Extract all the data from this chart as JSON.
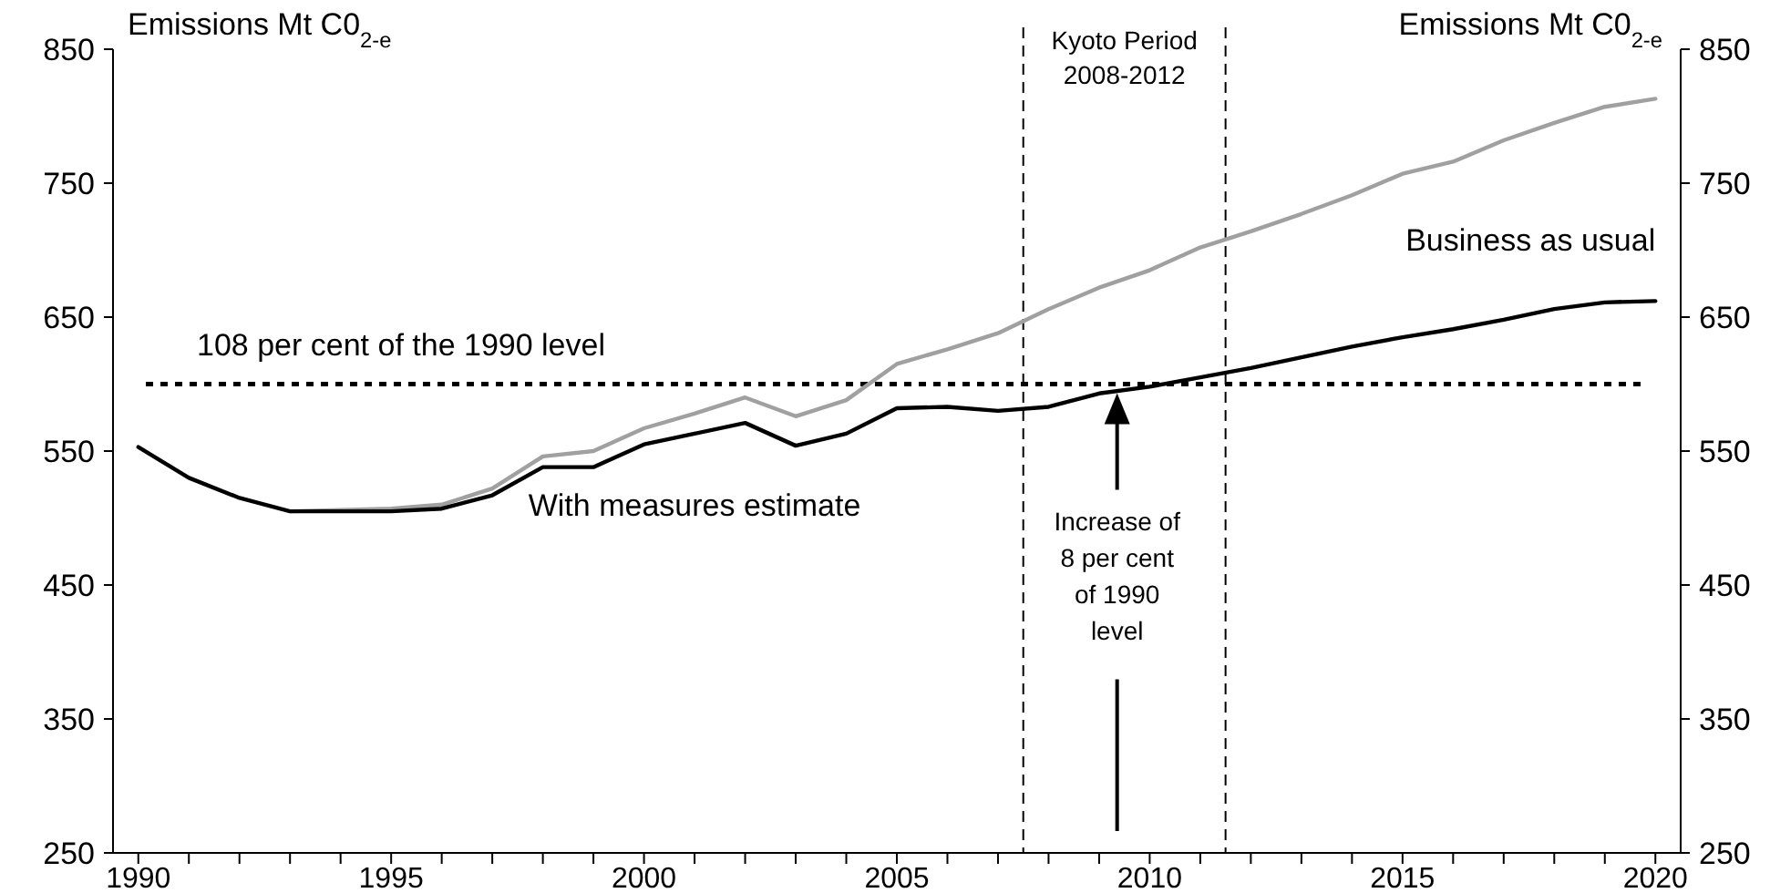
{
  "chart_data": {
    "type": "line",
    "ylabel": "Emissions Mt C0$_{2-e}$",
    "y2label": "Emissions Mt C0$_{2-e}$",
    "xlim": [
      1989.5,
      2020.5
    ],
    "xticks": [
      1990,
      {
        "value": 1991,
        "label": null
      },
      {
        "value": 1992,
        "label": null
      },
      {
        "value": 1993,
        "label": null
      },
      {
        "value": 1994,
        "label": null
      },
      1995,
      {
        "value": 1996,
        "label": null
      },
      {
        "value": 1997,
        "label": null
      },
      {
        "value": 1998,
        "label": null
      },
      {
        "value": 1999,
        "label": null
      },
      2000,
      {
        "value": 2001,
        "label": null
      },
      {
        "value": 2002,
        "label": null
      },
      {
        "value": 2003,
        "label": null
      },
      {
        "value": 2004,
        "label": null
      },
      2005,
      {
        "value": 2006,
        "label": null
      },
      {
        "value": 2007,
        "label": null
      },
      {
        "value": 2008,
        "label": null
      },
      {
        "value": 2009,
        "label": null
      },
      2010,
      {
        "value": 2011,
        "label": null
      },
      {
        "value": 2012,
        "label": null
      },
      {
        "value": 2013,
        "label": null
      },
      {
        "value": 2014,
        "label": null
      },
      2015,
      {
        "value": 2016,
        "label": null
      },
      {
        "value": 2017,
        "label": null
      },
      {
        "value": 2018,
        "label": null
      },
      {
        "value": 2019,
        "label": null
      },
      2020
    ],
    "ylim": [
      250,
      850
    ],
    "yticks": [
      250,
      350,
      450,
      550,
      650,
      750,
      850
    ],
    "y2lim": [
      250,
      850
    ],
    "y2ticks": [
      250,
      350,
      450,
      550,
      650,
      750,
      850
    ],
    "series": [
      {
        "name": "Business as usual",
        "color": "#a0a0a0",
        "x": [
          1993,
          1994,
          1995,
          1996,
          1997,
          1998,
          1999,
          2000,
          2001,
          2002,
          2003,
          2004,
          2005,
          2006,
          2007,
          2008,
          2009,
          2010,
          2011,
          2012,
          2013,
          2014,
          2015,
          2016,
          2017,
          2018,
          2019,
          2020
        ],
        "values": [
          505,
          506,
          507,
          510,
          522,
          546,
          550,
          567,
          578,
          590,
          576,
          588,
          615,
          626,
          638,
          656,
          672,
          685,
          702,
          714,
          727,
          741,
          757,
          766,
          782,
          795,
          807,
          813
        ]
      },
      {
        "name": "With measures estimate",
        "color": "#000000",
        "x": [
          1990,
          1991,
          1992,
          1993,
          1994,
          1995,
          1996,
          1997,
          1998,
          1999,
          2000,
          2001,
          2002,
          2003,
          2004,
          2005,
          2006,
          2007,
          2008,
          2009,
          2010,
          2011,
          2012,
          2013,
          2014,
          2015,
          2016,
          2017,
          2018,
          2019,
          2020
        ],
        "values": [
          553,
          530,
          515,
          505,
          505,
          505,
          507,
          517,
          538,
          538,
          555,
          563,
          571,
          554,
          563,
          582,
          583,
          580,
          583,
          593,
          598,
          605,
          612,
          620,
          628,
          635,
          641,
          648,
          656,
          661,
          662
        ]
      }
    ],
    "ref_lines": [
      {
        "axis": "y",
        "value": 600,
        "label": "108 per cent of the 1990 level",
        "color": "#000000",
        "line_style": "dotted"
      },
      {
        "axis": "x",
        "value": 2007.5,
        "color": "#000000",
        "line_style": "dashed"
      },
      {
        "axis": "x",
        "value": 2011.5,
        "color": "#000000",
        "line_style": "dashed"
      }
    ],
    "annotations": [
      "Kyoto Period 2008-2012",
      "Increase of 8 per cent of 1990 level"
    ],
    "legend": false,
    "grid": false,
    "marker": "none",
    "line_style": "solid"
  }
}
